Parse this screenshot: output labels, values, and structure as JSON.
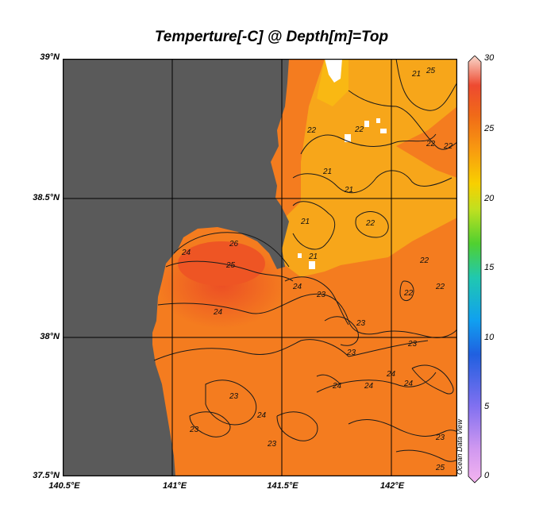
{
  "title": "Temperture[-C] @ Depth[m]=Top",
  "map": {
    "lon_ticks": [
      "140.5°E",
      "141°E",
      "141.5°E",
      "142°E"
    ],
    "lat_ticks": [
      "39°N",
      "38.5°N",
      "38°N",
      "37.5°N"
    ],
    "extent": {
      "lon_min": 140.5,
      "lon_max": 142.3,
      "lat_min": 37.5,
      "lat_max": 39.0
    },
    "land_color": "#5a5a5a",
    "contour_labels": [
      "21",
      "25",
      "22",
      "22",
      "22",
      "21",
      "22",
      "21",
      "21",
      "22",
      "24",
      "26",
      "25",
      "21",
      "22",
      "24",
      "23",
      "22",
      "24",
      "23",
      "22",
      "23",
      "24",
      "24",
      "24",
      "24",
      "23",
      "23",
      "23",
      "23",
      "23",
      "25",
      "24"
    ]
  },
  "colorbar": {
    "ticks": [
      "30",
      "25",
      "20",
      "15",
      "10",
      "5",
      "0"
    ],
    "range": [
      0,
      30
    ],
    "colors": [
      "#f0a0e8",
      "#a080f0",
      "#3050e0",
      "#10a8f0",
      "#20d0a0",
      "#60d020",
      "#c8e020",
      "#f8c000",
      "#f89000",
      "#f05010",
      "#f8d0c0"
    ]
  },
  "watermark": "Ocean Data View"
}
